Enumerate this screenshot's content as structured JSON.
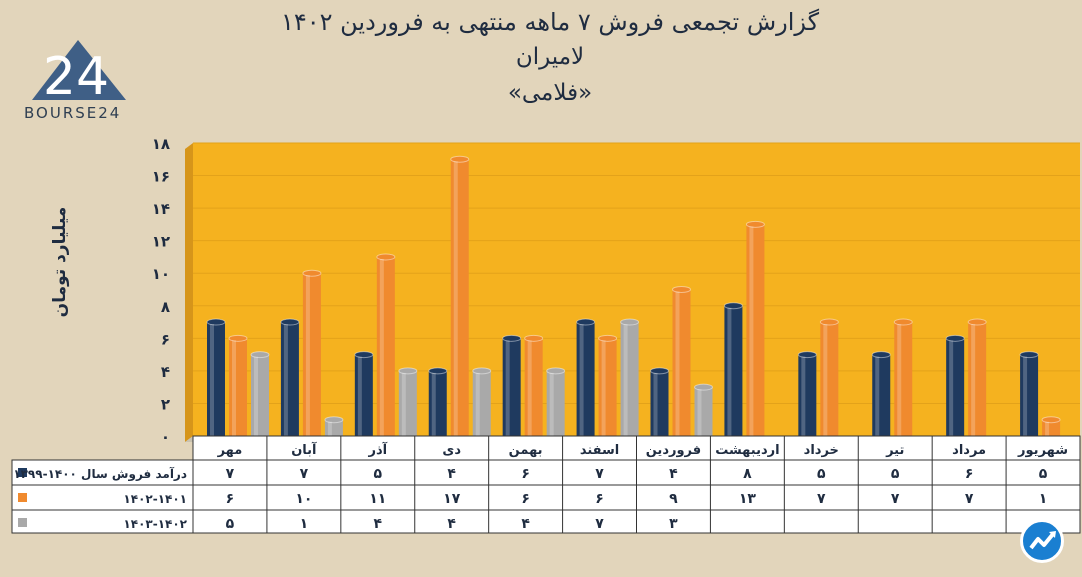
{
  "title": {
    "line1": "گزارش تجمعی فروش ۷ ماهه منتهی به فروردین ۱۴۰۲",
    "line2": "لامیران",
    "line3": "«فلامی»"
  },
  "logo": {
    "text": "BOURSE24",
    "mark": "24"
  },
  "colors": {
    "background": "#e2d5bb",
    "plot_bg": "#f5b21f",
    "series1": "#1f3a5f",
    "series2": "#f08a2e",
    "series3": "#a9a9a9"
  },
  "chart_data": {
    "type": "bar",
    "ylabel": "میلیارد تومان",
    "ylim": [
      0,
      18
    ],
    "yticks": [
      "۰",
      "۲",
      "۴",
      "۶",
      "۸",
      "۱۰",
      "۱۲",
      "۱۴",
      "۱۶",
      "۱۸"
    ],
    "categories": [
      "مهر",
      "آبان",
      "آذر",
      "دی",
      "بهمن",
      "اسفند",
      "فروردین",
      "اردیبهشت",
      "خرداد",
      "تیر",
      "مرداد",
      "شهریور"
    ],
    "series": [
      {
        "name": "درآمد فروش سال ۱۴۰۰-۱۳۹۹",
        "values": [
          7,
          7,
          5,
          4,
          6,
          7,
          4,
          8,
          5,
          5,
          6,
          5
        ],
        "labels": [
          "۷",
          "۷",
          "۵",
          "۴",
          "۶",
          "۷",
          "۴",
          "۸",
          "۵",
          "۵",
          "۶",
          "۵"
        ]
      },
      {
        "name": "۱۴۰۲-۱۴۰۱",
        "values": [
          6,
          10,
          11,
          17,
          6,
          6,
          9,
          13,
          7,
          7,
          7,
          1
        ],
        "labels": [
          "۶",
          "۱۰",
          "۱۱",
          "۱۷",
          "۶",
          "۶",
          "۹",
          "۱۳",
          "۷",
          "۷",
          "۷",
          "۱"
        ]
      },
      {
        "name": "۱۴۰۳-۱۴۰۲",
        "values": [
          5,
          1,
          4,
          4,
          4,
          7,
          3,
          null,
          null,
          null,
          null,
          null
        ],
        "labels": [
          "۵",
          "۱",
          "۴",
          "۴",
          "۴",
          "۷",
          "۳",
          "",
          "",
          "",
          "",
          ""
        ]
      }
    ]
  }
}
